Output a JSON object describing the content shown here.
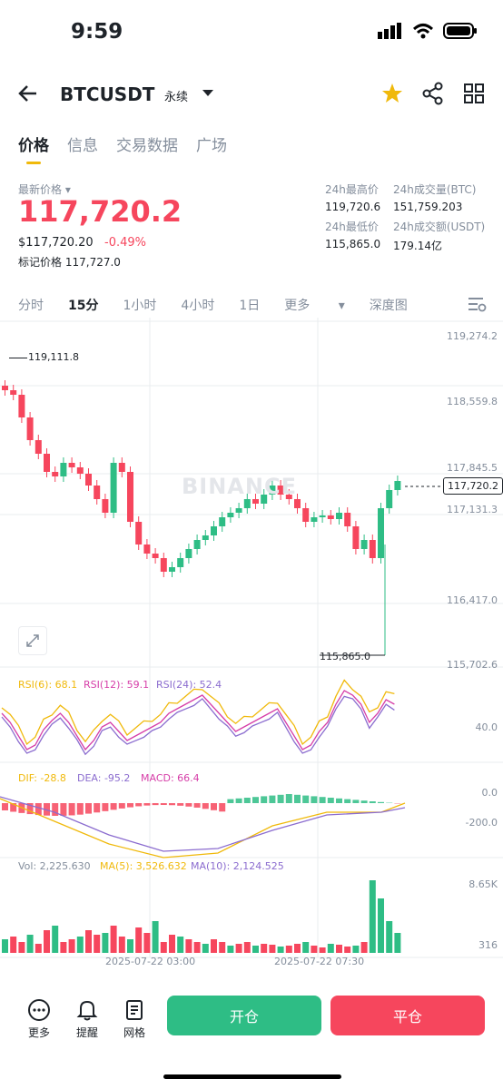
{
  "status": {
    "time": "9:59"
  },
  "header": {
    "symbol": "BTCUSDT",
    "contract_type": "永续"
  },
  "tabs": [
    {
      "label": "价格"
    },
    {
      "label": "信息"
    },
    {
      "label": "交易数据"
    },
    {
      "label": "广场"
    }
  ],
  "ticker": {
    "latest_label": "最新价格",
    "last_price": "117,720.2",
    "usd_price": "$117,720.20",
    "change_pct": "-0.49%",
    "mark_label": "标记价格",
    "mark_price": "117,727.0",
    "high_label": "24h最高价",
    "high": "119,720.6",
    "vol_btc_label": "24h成交量(BTC)",
    "vol_btc": "151,759.203",
    "low_label": "24h最低价",
    "low": "115,865.0",
    "vol_usdt_label": "24h成交额(USDT)",
    "vol_usdt": "179.14亿"
  },
  "intervals": [
    {
      "label": "分时"
    },
    {
      "label": "15分"
    },
    {
      "label": "1小时"
    },
    {
      "label": "4小时"
    },
    {
      "label": "1日"
    },
    {
      "label": "更多"
    },
    {
      "label": "深度图"
    }
  ],
  "chart": {
    "watermark": "BINANCE",
    "price_axis": [
      "119,274.2",
      "118,559.8",
      "117,845.5",
      "117,131.3",
      "116,417.0",
      "115,702.6"
    ],
    "current_price_tag": "117,720.2",
    "high_marker": "119,111.8",
    "low_marker": "115,865.0",
    "rsi": {
      "r6": "RSI(6): 68.1",
      "r12": "RSI(12): 59.1",
      "r24": "RSI(24): 52.4",
      "axis": "40.0"
    },
    "macd": {
      "dif": "DIF: -28.8",
      "dea": "DEA: -95.2",
      "macd": "MACD: 66.4",
      "axis_top": "0.0",
      "axis_bottom": "-200.0"
    },
    "vol": {
      "vol": "Vol: 2,225.630",
      "ma5": "MA(5): 3,526.632",
      "ma10": "MA(10): 2,124.525",
      "axis_top": "8.65K",
      "axis_bottom": "316"
    },
    "time_labels": [
      "2025-07-22 03:00",
      "2025-07-22 07:30"
    ],
    "colors": {
      "up": "#2ebd85",
      "down": "#f6465d",
      "rsi6": "#f0b90b",
      "rsi12": "#d63ea8",
      "rsi24": "#8b6ccf"
    }
  },
  "bottom": {
    "more": "更多",
    "alert": "提醒",
    "grid": "网格",
    "open": "开仓",
    "close": "平仓",
    "open_color": "#2ebd85",
    "close_color": "#f6465d"
  }
}
